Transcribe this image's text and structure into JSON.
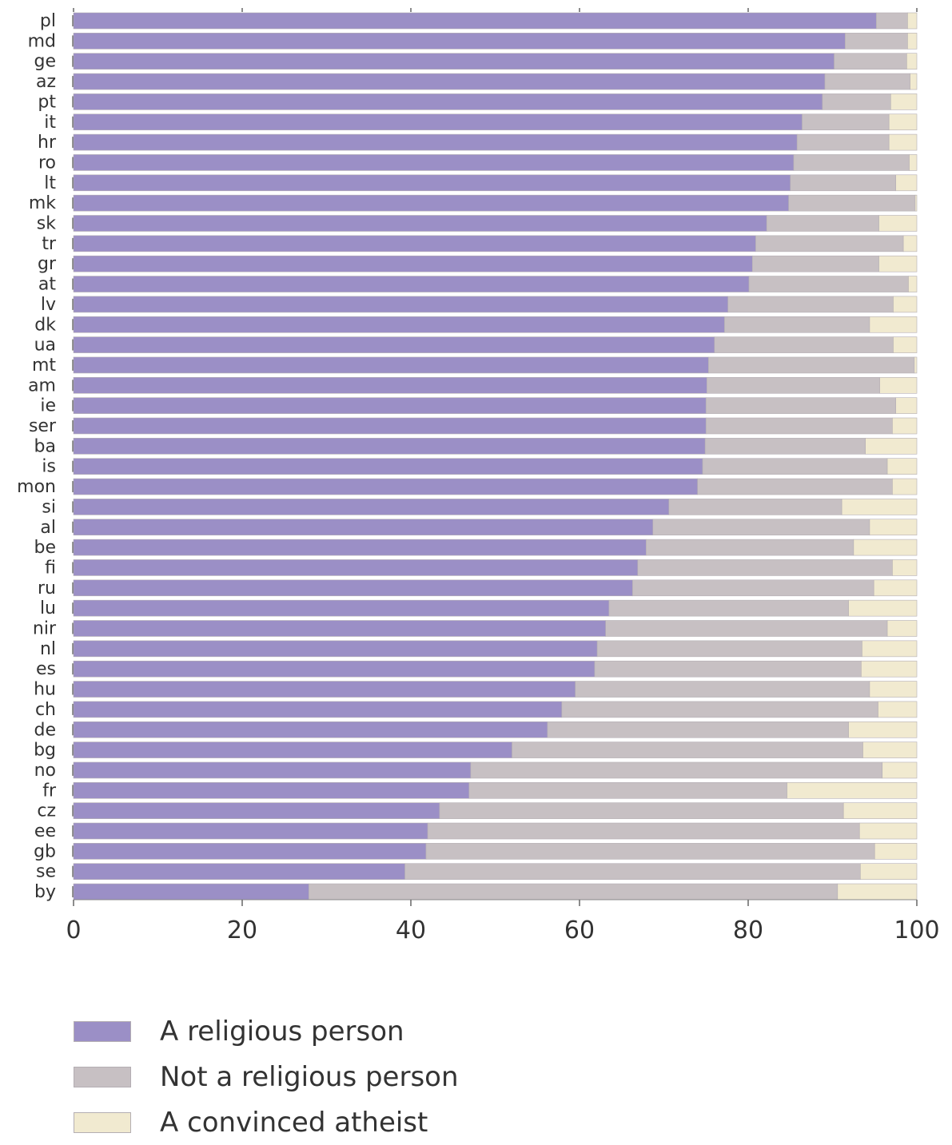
{
  "chart_data": {
    "type": "bar",
    "orientation": "horizontal",
    "stacked": true,
    "categories": [
      "pl",
      "md",
      "ge",
      "az",
      "pt",
      "it",
      "hr",
      "ro",
      "lt",
      "mk",
      "sk",
      "tr",
      "gr",
      "at",
      "lv",
      "dk",
      "ua",
      "mt",
      "am",
      "ie",
      "ser",
      "ba",
      "is",
      "mon",
      "si",
      "al",
      "be",
      "fi",
      "ru",
      "lu",
      "nir",
      "nl",
      "es",
      "hu",
      "ch",
      "de",
      "bg",
      "no",
      "fr",
      "cz",
      "ee",
      "gb",
      "se",
      "by"
    ],
    "series": [
      {
        "name": "A religious person",
        "color": "#9b8fc6",
        "values": [
          95.2,
          91.5,
          90.2,
          89.1,
          88.8,
          86.4,
          85.8,
          85.4,
          85.0,
          84.8,
          82.2,
          80.9,
          80.5,
          80.1,
          77.6,
          77.2,
          76.0,
          75.3,
          75.1,
          75.0,
          75.0,
          74.9,
          74.6,
          74.0,
          70.6,
          68.7,
          67.9,
          66.9,
          66.3,
          63.5,
          63.1,
          62.1,
          61.8,
          59.5,
          57.9,
          56.2,
          52.0,
          47.1,
          46.9,
          43.4,
          42.0,
          41.8,
          39.3,
          27.9
        ]
      },
      {
        "name": "Not a religious person",
        "color": "#c7c0c3",
        "values": [
          3.7,
          7.4,
          8.6,
          10.1,
          8.1,
          10.3,
          10.9,
          13.7,
          12.5,
          15.0,
          13.3,
          17.5,
          15.0,
          18.9,
          19.6,
          17.2,
          21.2,
          24.4,
          20.5,
          22.5,
          22.1,
          19.0,
          21.9,
          23.1,
          20.5,
          25.7,
          24.6,
          30.2,
          28.6,
          28.4,
          33.4,
          31.4,
          31.6,
          34.9,
          37.5,
          35.7,
          41.6,
          48.8,
          37.7,
          47.9,
          51.2,
          53.2,
          54.0,
          62.7
        ]
      },
      {
        "name": "A convinced atheist",
        "color": "#f1ead0",
        "values": [
          1.1,
          1.1,
          1.2,
          0.8,
          3.1,
          3.3,
          3.3,
          0.9,
          2.5,
          0.2,
          4.5,
          1.6,
          4.5,
          1.0,
          2.8,
          5.6,
          2.8,
          0.3,
          4.4,
          2.5,
          2.9,
          6.1,
          3.5,
          2.9,
          8.9,
          5.6,
          7.5,
          2.9,
          5.1,
          8.1,
          3.5,
          6.5,
          6.6,
          5.6,
          4.6,
          8.1,
          6.4,
          4.1,
          15.4,
          8.7,
          6.8,
          5.0,
          6.7,
          9.4
        ]
      }
    ],
    "xlim": [
      0,
      100
    ],
    "xticks": [
      "0",
      "20",
      "40",
      "60",
      "80",
      "100"
    ],
    "xlabel": "",
    "ylabel": "",
    "legend_position": "bottom-left"
  }
}
